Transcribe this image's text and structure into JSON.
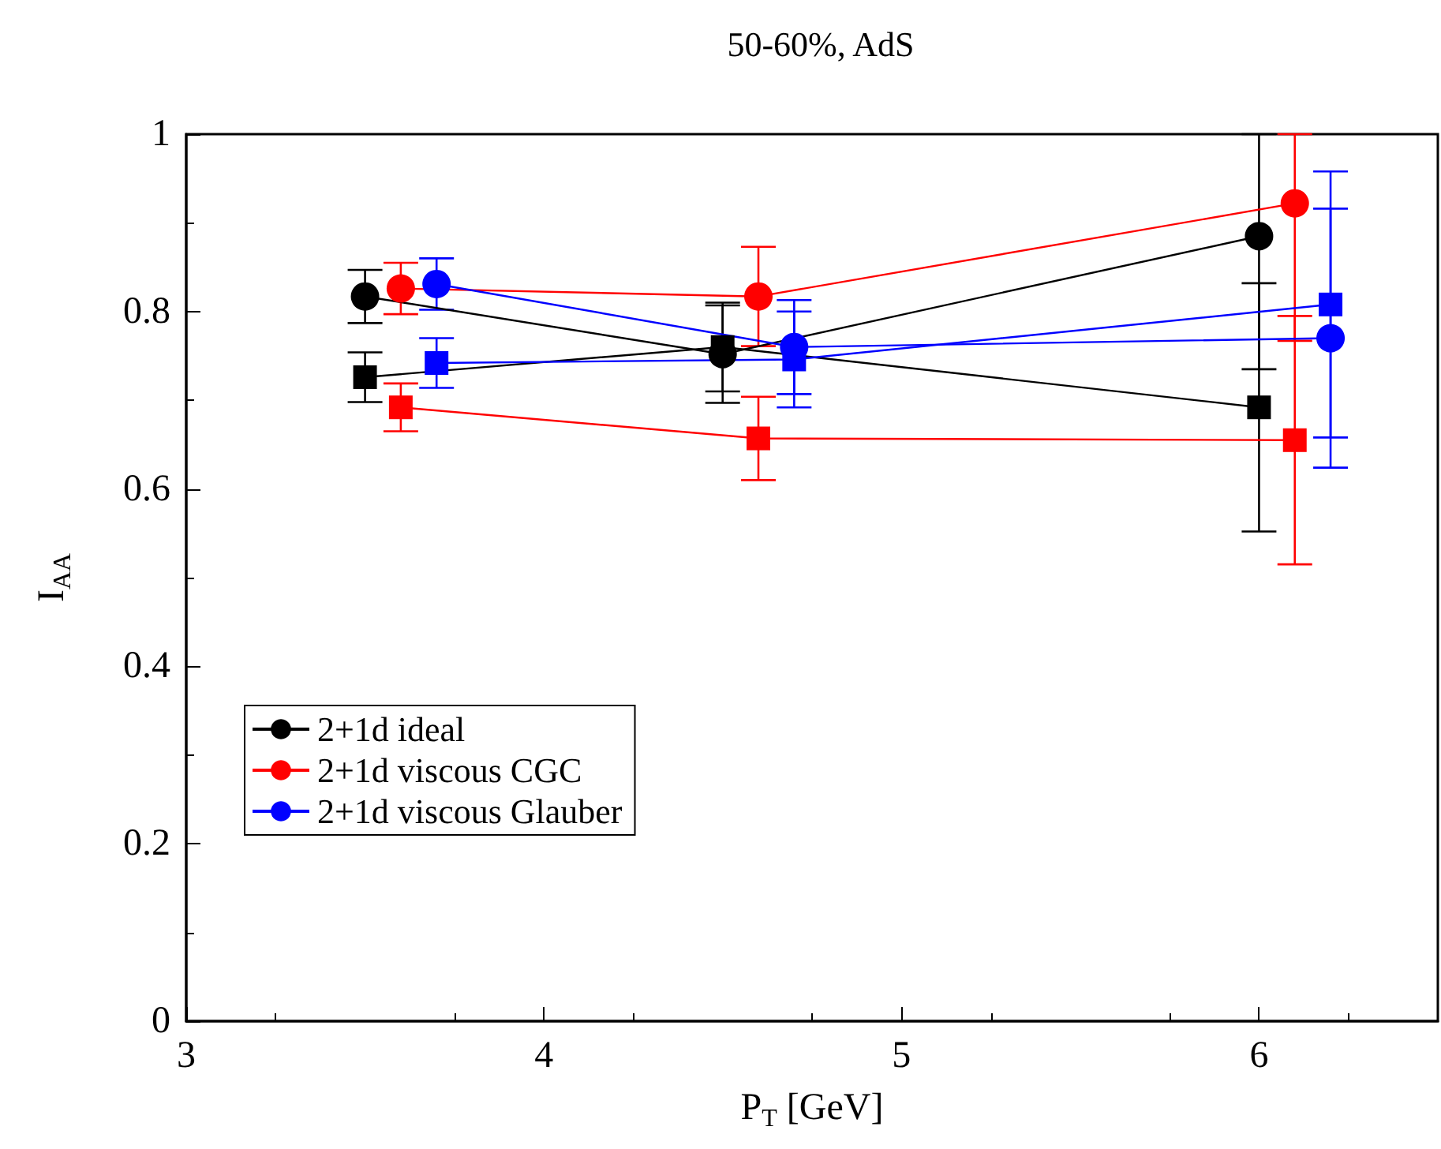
{
  "chart_data": {
    "type": "line",
    "title": "50-60%, AdS",
    "xlabel": "P$_{T}$ [GeV]",
    "ylabel": "I$_{AA}$",
    "xlim": [
      3,
      6.5
    ],
    "xticks": [
      3,
      4,
      5,
      6
    ],
    "ylim": [
      0,
      1
    ],
    "yticks": [
      0,
      0.2,
      0.4,
      0.6,
      0.8,
      1
    ],
    "grid": false,
    "legend": "bottom left",
    "line_style": "solid",
    "series": [
      {
        "name": "2+1d ideal",
        "color": "#000000",
        "marker": "circle",
        "x": [
          3.5,
          4.5,
          6
        ],
        "values": [
          0.817,
          0.752,
          0.885
        ],
        "errors": [
          0.03,
          0.055,
          [
            0.735,
            1
          ]
        ]
      },
      {
        "color": "#000000",
        "marker": "square",
        "x": [
          3.5,
          4.5,
          6
        ],
        "values": [
          0.726,
          0.76,
          0.692
        ],
        "errors": [
          0.028,
          0.05,
          0.14
        ]
      },
      {
        "name": "2+1d viscous CGC",
        "color": "#ff0000",
        "marker": "circle",
        "x": [
          3.6,
          4.6,
          6.1
        ],
        "values": [
          0.826,
          0.817,
          0.922
        ],
        "errors": [
          0.029,
          0.056,
          [
            0.767,
            1
          ]
        ]
      },
      {
        "color": "#ff0000",
        "marker": "square",
        "x": [
          3.6,
          4.6,
          6.1
        ],
        "values": [
          0.692,
          0.657,
          0.655
        ],
        "errors": [
          0.027,
          0.047,
          0.14
        ]
      },
      {
        "name": "2+1d viscous Glauber",
        "color": "#0000ff",
        "marker": "circle",
        "x": [
          3.7,
          4.7,
          6.2
        ],
        "values": [
          0.831,
          0.76,
          0.77
        ],
        "errors": [
          0.029,
          0.053,
          0.146
        ]
      },
      {
        "color": "#0000ff",
        "marker": "square",
        "x": [
          3.7,
          4.7,
          6.2
        ],
        "values": [
          0.742,
          0.746,
          0.808
        ],
        "errors": [
          0.028,
          0.054,
          0.15
        ]
      }
    ]
  }
}
